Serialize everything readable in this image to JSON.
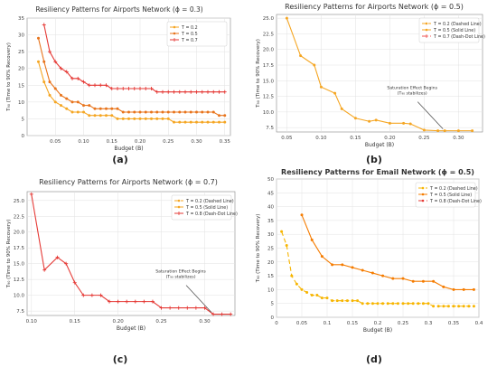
{
  "figure": {
    "panel_labels": [
      "(a)",
      "(b)",
      "(c)",
      "(d)"
    ]
  },
  "chart_data": [
    {
      "panel": "(a)",
      "type": "line",
      "title": "Resiliency Patterns for Airports Network (ϕ = 0.3)",
      "xlabel": "Budget (B)",
      "ylabel": "T₉₀ (Time to 90% Recovery)",
      "xlim": [
        0.0,
        0.36
      ],
      "ylim": [
        0,
        35
      ],
      "xticks": [
        "0.05",
        "0.10",
        "0.15",
        "0.20",
        "0.25",
        "0.30",
        "0.35"
      ],
      "yticks": [
        "0",
        "5",
        "10",
        "15",
        "20",
        "25",
        "30",
        "35"
      ],
      "grid": true,
      "legend": "top-right",
      "series": [
        {
          "name": "T = 0.2",
          "color": "#f5a623",
          "marker": "o",
          "dash": "",
          "x": [
            0.02,
            0.03,
            0.04,
            0.05,
            0.06,
            0.07,
            0.08,
            0.09,
            0.1,
            0.11,
            0.12,
            0.13,
            0.14,
            0.15,
            0.16,
            0.17,
            0.18,
            0.19,
            0.2,
            0.21,
            0.22,
            0.23,
            0.24,
            0.25,
            0.26,
            0.27,
            0.28,
            0.29,
            0.3,
            0.31,
            0.32,
            0.33,
            0.34,
            0.35
          ],
          "y": [
            22,
            16,
            12,
            10,
            9,
            8,
            7,
            7,
            7,
            6,
            6,
            6,
            6,
            6,
            5,
            5,
            5,
            5,
            5,
            5,
            5,
            5,
            5,
            5,
            4,
            4,
            4,
            4,
            4,
            4,
            4,
            4,
            4,
            4
          ]
        },
        {
          "name": "T = 0.5",
          "color": "#e8741c",
          "marker": "o",
          "dash": "",
          "x": [
            0.02,
            0.03,
            0.04,
            0.05,
            0.06,
            0.07,
            0.08,
            0.09,
            0.1,
            0.11,
            0.12,
            0.13,
            0.14,
            0.15,
            0.16,
            0.17,
            0.18,
            0.19,
            0.2,
            0.21,
            0.22,
            0.23,
            0.24,
            0.25,
            0.26,
            0.27,
            0.28,
            0.29,
            0.3,
            0.31,
            0.32,
            0.33,
            0.34,
            0.35
          ],
          "y": [
            29,
            22,
            16,
            14,
            12,
            11,
            10,
            10,
            9,
            9,
            8,
            8,
            8,
            8,
            8,
            7,
            7,
            7,
            7,
            7,
            7,
            7,
            7,
            7,
            7,
            7,
            7,
            7,
            7,
            7,
            7,
            7,
            6,
            6
          ]
        },
        {
          "name": "T = 0.7",
          "color": "#e53935",
          "marker": "+",
          "dash": "",
          "x": [
            0.03,
            0.04,
            0.05,
            0.06,
            0.07,
            0.08,
            0.09,
            0.1,
            0.11,
            0.12,
            0.13,
            0.14,
            0.15,
            0.16,
            0.17,
            0.18,
            0.19,
            0.2,
            0.21,
            0.22,
            0.23,
            0.24,
            0.25,
            0.26,
            0.27,
            0.28,
            0.29,
            0.3,
            0.31,
            0.32,
            0.33,
            0.34,
            0.35
          ],
          "y": [
            33,
            25,
            22,
            20,
            19,
            17,
            17,
            16,
            15,
            15,
            15,
            15,
            14,
            14,
            14,
            14,
            14,
            14,
            14,
            14,
            13,
            13,
            13,
            13,
            13,
            13,
            13,
            13,
            13,
            13,
            13,
            13,
            13
          ]
        }
      ]
    },
    {
      "panel": "(b)",
      "type": "line",
      "title": "Resiliency Patterns for Airports Network (ϕ = 0.5)",
      "xlabel": "Budget (B)",
      "ylabel": "T₉₀ (Time to 90% Recovery)",
      "xlim": [
        0.035,
        0.335
      ],
      "ylim": [
        6.8,
        25.6
      ],
      "xticks": [
        "0.05",
        "0.10",
        "0.15",
        "0.20",
        "0.25",
        "0.30"
      ],
      "yticks": [
        "7.5",
        "10.0",
        "12.5",
        "15.0",
        "17.5",
        "20.0",
        "22.5",
        "25.0"
      ],
      "grid": true,
      "legend": "top-right",
      "annotation": {
        "text": [
          "Saturation Effect Begins",
          "(T₉₀ stabilizes)"
        ],
        "x": 0.28,
        "y": 7
      },
      "series": [
        {
          "name": "T = 0.2 (Dashed Line)",
          "color": "#f5a623",
          "marker": "o",
          "dash": "4,3",
          "x": [],
          "y": []
        },
        {
          "name": "T = 0.5 (Solid Line)",
          "color": "#f5a623",
          "marker": "o",
          "dash": "",
          "x": [
            0.05,
            0.07,
            0.09,
            0.1,
            0.12,
            0.13,
            0.15,
            0.17,
            0.18,
            0.2,
            0.22,
            0.23,
            0.25,
            0.27,
            0.28,
            0.3,
            0.32
          ],
          "y": [
            25,
            19,
            17.5,
            14,
            13,
            10.5,
            9,
            8.5,
            8.7,
            8.2,
            8.2,
            8.1,
            7.1,
            7,
            7,
            7,
            7
          ]
        },
        {
          "name": "T = 0.7 (Dash-Dot Line)",
          "color": "#ef5350",
          "marker": "+",
          "dash": "6,3,2,3",
          "x": [],
          "y": []
        }
      ]
    },
    {
      "panel": "(c)",
      "type": "line",
      "title": "Resiliency Patterns for Airports Network (ϕ = 0.7)",
      "xlabel": "Budget (B)",
      "ylabel": "T₉₀ (Time to 90% Recovery)",
      "xlim": [
        0.095,
        0.335
      ],
      "ylim": [
        6.8,
        26.4
      ],
      "xticks": [
        "0.10",
        "0.15",
        "0.20",
        "0.25",
        "0.30"
      ],
      "yticks": [
        "7.5",
        "10.0",
        "12.5",
        "15.0",
        "17.5",
        "20.0",
        "22.5",
        "25.0"
      ],
      "grid": true,
      "legend": "top-right",
      "annotation": {
        "text": [
          "Saturation Effect Begins",
          "(T₉₀ stabilizes)"
        ],
        "x": 0.31,
        "y": 7
      },
      "series": [
        {
          "name": "T = 0.2 (Dashed Line)",
          "color": "#f5a623",
          "marker": "o",
          "dash": "4,3",
          "x": [],
          "y": []
        },
        {
          "name": "T = 0.5 (Solid Line)",
          "color": "#f5a623",
          "marker": "o",
          "dash": "",
          "x": [],
          "y": []
        },
        {
          "name": "T = 0.8 (Dash-Dot Line)",
          "color": "#e53935",
          "marker": "+",
          "dash": "",
          "x": [
            0.1,
            0.115,
            0.13,
            0.14,
            0.15,
            0.16,
            0.17,
            0.18,
            0.19,
            0.2,
            0.21,
            0.22,
            0.23,
            0.24,
            0.25,
            0.26,
            0.27,
            0.28,
            0.29,
            0.3,
            0.31,
            0.32,
            0.33
          ],
          "y": [
            26,
            14,
            16,
            15,
            12,
            10,
            10,
            10,
            9,
            9,
            9,
            9,
            9,
            9,
            8,
            8,
            8,
            8,
            8,
            8,
            7,
            7,
            7
          ]
        }
      ]
    },
    {
      "panel": "(d)",
      "type": "line",
      "title": "Resiliency Patterns for Email Network (ϕ = 0.5)",
      "xlabel": "Budget (B)",
      "ylabel": "T₉₀ (Time to 90% Recovery)",
      "xlim": [
        0.0,
        0.4
      ],
      "ylim": [
        0,
        50
      ],
      "xticks": [
        "0",
        "0.05",
        "0.1",
        "0.15",
        "0.2",
        "0.25",
        "0.3",
        "0.35",
        "0.4"
      ],
      "yticks": [
        "0",
        "5",
        "10",
        "15",
        "20",
        "25",
        "30",
        "35",
        "40",
        "45",
        "50"
      ],
      "grid": true,
      "legend": "top-right",
      "series": [
        {
          "name": "T = 0.2 (Dashed Line)",
          "color": "#f7b500",
          "marker": "o",
          "dash": "5,3",
          "x": [
            0.01,
            0.02,
            0.03,
            0.04,
            0.05,
            0.06,
            0.07,
            0.08,
            0.09,
            0.1,
            0.11,
            0.12,
            0.13,
            0.14,
            0.15,
            0.16,
            0.17,
            0.18,
            0.19,
            0.2,
            0.21,
            0.22,
            0.23,
            0.24,
            0.25,
            0.26,
            0.27,
            0.28,
            0.29,
            0.3,
            0.31,
            0.32,
            0.33,
            0.34,
            0.35,
            0.36,
            0.37,
            0.38,
            0.39
          ],
          "y": [
            31,
            26,
            15,
            12,
            10,
            9,
            8,
            8,
            7,
            7,
            6,
            6,
            6,
            6,
            6,
            6,
            5,
            5,
            5,
            5,
            5,
            5,
            5,
            5,
            5,
            5,
            5,
            5,
            5,
            5,
            4,
            4,
            4,
            4,
            4,
            4,
            4,
            4,
            4
          ]
        },
        {
          "name": "T = 0.5 (Solid Line)",
          "color": "#f57c00",
          "marker": "o",
          "dash": "",
          "x": [
            0.05,
            0.07,
            0.09,
            0.11,
            0.13,
            0.15,
            0.17,
            0.19,
            0.21,
            0.23,
            0.25,
            0.27,
            0.29,
            0.31,
            0.33,
            0.35,
            0.37,
            0.39
          ],
          "y": [
            37,
            28,
            22,
            19,
            19,
            18,
            17,
            16,
            15,
            14,
            14,
            13,
            13,
            13,
            11,
            10,
            10,
            10
          ]
        },
        {
          "name": "T = 0.8 (Dash-Dot Line)",
          "color": "#e53935",
          "marker": "o",
          "dash": "6,3,2,3",
          "x": [],
          "y": []
        }
      ]
    }
  ]
}
